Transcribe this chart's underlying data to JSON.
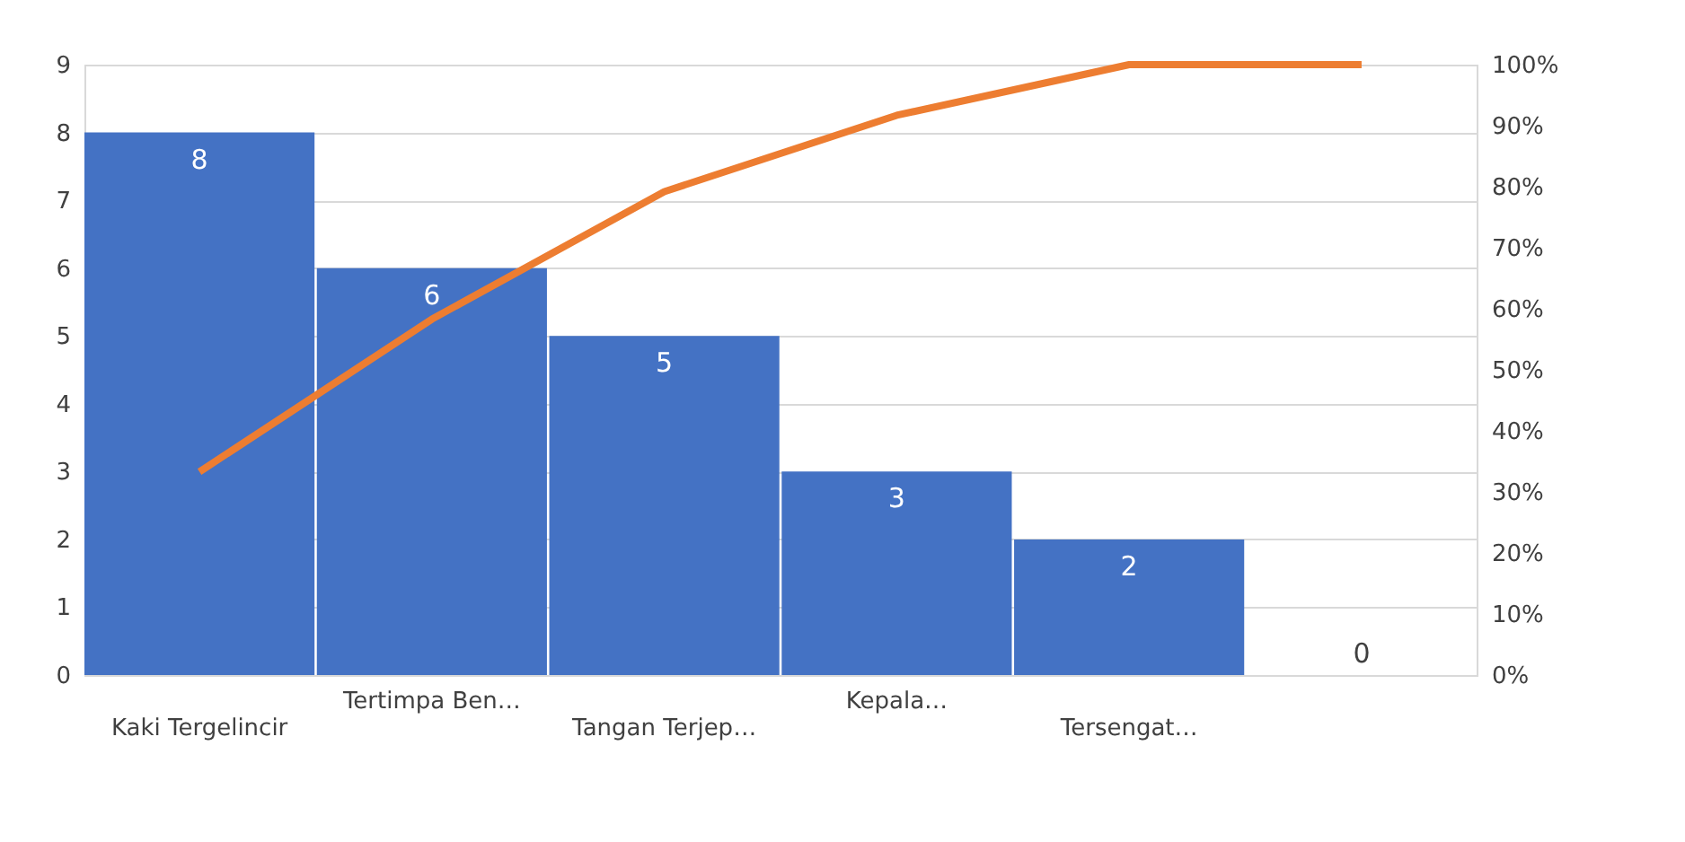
{
  "chart_data": {
    "type": "bar",
    "categories": [
      "Kaki Tergelincir",
      "Tertimpa Ben…",
      "Tangan Terjep…",
      "Kepala…",
      "Tersengat…",
      null
    ],
    "series": [
      {
        "color": "#4472c4",
        "values": [
          8,
          6,
          5,
          3,
          2,
          0
        ],
        "value_labels": [
          "8",
          "6",
          "5",
          "3",
          "2",
          "0"
        ]
      },
      {
        "type": "line",
        "axis": "y2",
        "color": "#ed7d31",
        "values": [
          33.3,
          58.3,
          79.2,
          91.7,
          100,
          100
        ]
      }
    ],
    "ylim": [
      0,
      9
    ],
    "yticks": [
      0,
      1,
      2,
      3,
      4,
      5,
      6,
      7,
      8,
      9
    ],
    "y2lim": [
      0,
      100
    ],
    "y2ticks": [
      {
        "value": 0,
        "label": "0%"
      },
      {
        "value": 10,
        "label": "10%"
      },
      {
        "value": 20,
        "label": "20%"
      },
      {
        "value": 30,
        "label": "30%"
      },
      {
        "value": 40,
        "label": "40%"
      },
      {
        "value": 50,
        "label": "50%"
      },
      {
        "value": 60,
        "label": "60%"
      },
      {
        "value": 70,
        "label": "70%"
      },
      {
        "value": 80,
        "label": "80%"
      },
      {
        "value": 90,
        "label": "90%"
      },
      {
        "value": 100,
        "label": "100%"
      }
    ],
    "grid": "y"
  }
}
